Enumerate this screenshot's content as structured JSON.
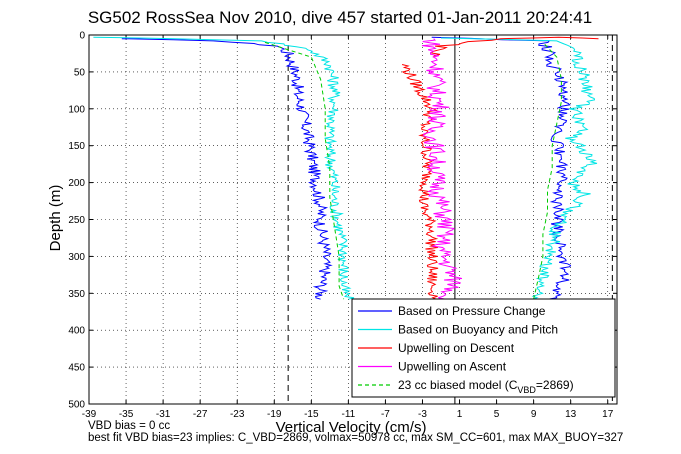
{
  "chart_data": {
    "type": "line",
    "title": "SG502 RossSea Nov 2010, dive 457 started 01-Jan-2011 20:24:41",
    "xlabel": "Vertical Velocity (cm/s)",
    "ylabel": "Depth (m)",
    "xlim": [
      -39,
      18
    ],
    "ylim": [
      500,
      0
    ],
    "y_reversed": true,
    "grid": true,
    "x_ticks": [
      -39,
      -35,
      -31,
      -27,
      -23,
      -19,
      -15,
      -11,
      -7,
      -3,
      1,
      5,
      9,
      13,
      17
    ],
    "y_ticks": [
      0,
      50,
      100,
      150,
      200,
      250,
      300,
      350,
      400,
      450,
      500
    ],
    "legend_position": "bottom-right",
    "reference_lines": [
      {
        "axis": "x",
        "value": -17.5,
        "style": "dashed"
      },
      {
        "axis": "x",
        "value": 0.5,
        "style": "solid"
      },
      {
        "axis": "x",
        "value": 17.5,
        "style": "dashed"
      }
    ],
    "series": [
      {
        "name": "Based on Pressure Change",
        "color": "#0000ff",
        "descent": [
          [
            -36,
            5
          ],
          [
            -25,
            8
          ],
          [
            -18.5,
            15
          ],
          [
            -17.5,
            25
          ],
          [
            -17,
            40
          ],
          [
            -16.5,
            60
          ],
          [
            -16.5,
            80
          ],
          [
            -16,
            100
          ],
          [
            -15.5,
            130
          ],
          [
            -15,
            160
          ],
          [
            -14.5,
            200
          ],
          [
            -14,
            230
          ],
          [
            -14,
            260
          ],
          [
            -13.5,
            290
          ],
          [
            -13.5,
            320
          ],
          [
            -14,
            345
          ],
          [
            -14,
            358
          ]
        ],
        "ascent": [
          [
            11,
            358
          ],
          [
            12,
            340
          ],
          [
            12.5,
            320
          ],
          [
            12,
            290
          ],
          [
            11.5,
            260
          ],
          [
            11.5,
            230
          ],
          [
            12,
            200
          ],
          [
            12,
            170
          ],
          [
            11.5,
            140
          ],
          [
            12,
            110
          ],
          [
            12.5,
            85
          ],
          [
            12,
            60
          ],
          [
            11,
            40
          ],
          [
            10.5,
            20
          ],
          [
            10,
            8
          ],
          [
            -2,
            3
          ]
        ]
      },
      {
        "name": "Based on Buoyancy and Pitch",
        "color": "#00e5e5",
        "descent": [
          [
            -38,
            3
          ],
          [
            -30,
            5
          ],
          [
            -20,
            8
          ],
          [
            -15,
            20
          ],
          [
            -13,
            40
          ],
          [
            -12.5,
            70
          ],
          [
            -12.5,
            100
          ],
          [
            -13,
            130
          ],
          [
            -13,
            160
          ],
          [
            -12.5,
            200
          ],
          [
            -12.5,
            230
          ],
          [
            -12,
            260
          ],
          [
            -11.5,
            290
          ],
          [
            -11.5,
            320
          ],
          [
            -11.5,
            345
          ],
          [
            -11,
            358
          ]
        ],
        "ascent": [
          [
            9,
            358
          ],
          [
            10,
            340
          ],
          [
            10,
            320
          ],
          [
            11,
            290
          ],
          [
            11.5,
            260
          ],
          [
            13.5,
            230
          ],
          [
            14.5,
            215
          ],
          [
            13,
            200
          ],
          [
            15.5,
            170
          ],
          [
            13,
            140
          ],
          [
            14.5,
            130
          ],
          [
            13.5,
            100
          ],
          [
            15,
            90
          ],
          [
            14.5,
            60
          ],
          [
            14,
            40
          ],
          [
            13.5,
            20
          ],
          [
            12,
            8
          ],
          [
            -1,
            4
          ]
        ]
      },
      {
        "name": "Upwelling on Descent",
        "color": "#ff0000",
        "descent": [
          [
            -5,
            40
          ],
          [
            -4,
            60
          ],
          [
            -3,
            80
          ],
          [
            -2,
            100
          ],
          [
            -3,
            130
          ],
          [
            -2.5,
            160
          ],
          [
            -2.5,
            200
          ],
          [
            -3,
            230
          ],
          [
            -2,
            260
          ],
          [
            -2,
            290
          ],
          [
            -2,
            320
          ],
          [
            -2,
            340
          ],
          [
            -1.5,
            358
          ]
        ],
        "ascent": [
          [
            -2,
            30
          ],
          [
            -1,
            15
          ],
          [
            5,
            5
          ],
          [
            12,
            3
          ],
          [
            16,
            5
          ]
        ]
      },
      {
        "name": "Upwelling on Ascent",
        "color": "#ff00ff",
        "descent": [
          [
            -2,
            5
          ],
          [
            -2,
            20
          ],
          [
            -1.5,
            40
          ],
          [
            -1.5,
            60
          ],
          [
            -1.5,
            80
          ],
          [
            -1,
            100
          ],
          [
            -2,
            130
          ],
          [
            -1.5,
            160
          ],
          [
            -1.5,
            200
          ],
          [
            -1,
            230
          ],
          [
            -0.5,
            260
          ],
          [
            -1,
            290
          ],
          [
            0,
            320
          ],
          [
            0.5,
            340
          ],
          [
            -0.5,
            358
          ]
        ],
        "ascent": []
      },
      {
        "name": "23 cc biased model (C_VBD=2869)",
        "color": "#00cc00",
        "style": "dashed",
        "descent": [
          [
            -20,
            10
          ],
          [
            -15,
            30
          ],
          [
            -14,
            60
          ],
          [
            -13.5,
            100
          ],
          [
            -13.5,
            140
          ],
          [
            -13,
            180
          ],
          [
            -13,
            220
          ],
          [
            -12.5,
            260
          ],
          [
            -12,
            300
          ],
          [
            -12,
            340
          ],
          [
            -11.5,
            358
          ]
        ],
        "ascent": [
          [
            9,
            358
          ],
          [
            9.5,
            330
          ],
          [
            10,
            300
          ],
          [
            10,
            270
          ],
          [
            10.5,
            240
          ],
          [
            10.5,
            210
          ],
          [
            11,
            180
          ],
          [
            11,
            150
          ],
          [
            11.5,
            120
          ],
          [
            12,
            90
          ],
          [
            12,
            60
          ],
          [
            11.5,
            30
          ],
          [
            10,
            10
          ]
        ]
      }
    ]
  },
  "legend": {
    "items": [
      {
        "label": "Based on Pressure Change",
        "color": "#0000ff",
        "dashed": false
      },
      {
        "label": "Based on Buoyancy and Pitch",
        "color": "#00e5e5",
        "dashed": false
      },
      {
        "label": "Upwelling on Descent",
        "color": "#ff0000",
        "dashed": false
      },
      {
        "label": "Upwelling on Ascent",
        "color": "#ff00ff",
        "dashed": false
      },
      {
        "label": "23 cc biased model (C",
        "sub": "VBD",
        "suffix": "=2869)",
        "color": "#00cc00",
        "dashed": true
      }
    ]
  },
  "footer": {
    "line1": "VBD bias = 0 cc",
    "line2": "best fit VBD bias=23 implies: C_VBD=2869, volmax=50978 cc, max SM_CC=601, max MAX_BUOY=327"
  }
}
